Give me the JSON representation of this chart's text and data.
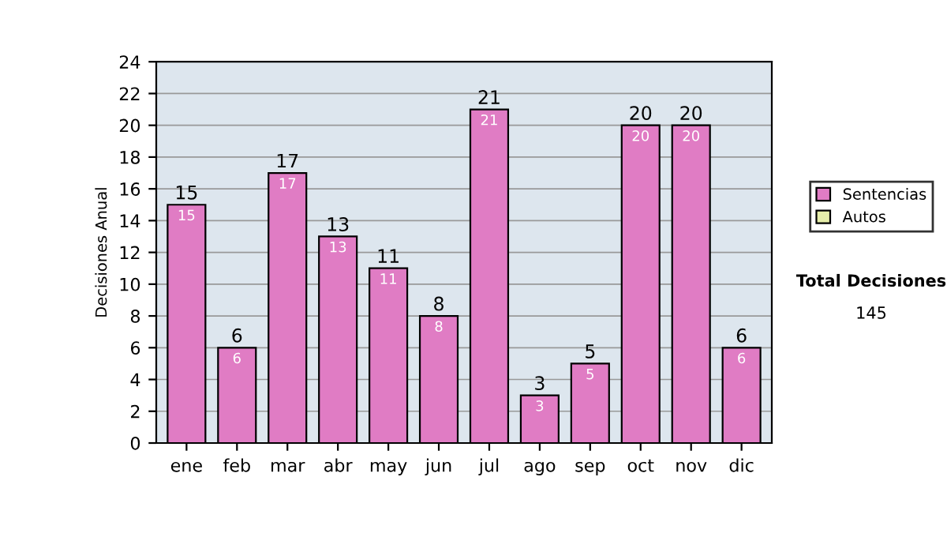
{
  "chart_data": {
    "type": "bar",
    "ylabel": "Decisiones Anual",
    "categories": [
      "ene",
      "feb",
      "mar",
      "abr",
      "may",
      "jun",
      "jul",
      "ago",
      "sep",
      "oct",
      "nov",
      "dic"
    ],
    "series": [
      {
        "name": "Sentencias",
        "color": "#e07cc4",
        "values": [
          15,
          6,
          17,
          13,
          11,
          8,
          21,
          3,
          5,
          20,
          20,
          6
        ]
      },
      {
        "name": "Autos",
        "color": "#e6eeaa",
        "values": [
          null,
          null,
          null,
          null,
          null,
          null,
          null,
          null,
          null,
          null,
          null,
          null
        ]
      }
    ],
    "stacked": true,
    "data_labels": true,
    "totals": [
      "15",
      "6",
      "17",
      "13",
      "11",
      "8",
      "21",
      "3",
      "5",
      "20",
      "20",
      "6"
    ],
    "ylim": [
      0,
      24
    ],
    "yticks": [
      0,
      2,
      4,
      6,
      8,
      10,
      12,
      14,
      16,
      18,
      20,
      22,
      24
    ],
    "grid": "y",
    "legend": "right",
    "annotations": [
      "Total Decisiones",
      "145"
    ]
  }
}
